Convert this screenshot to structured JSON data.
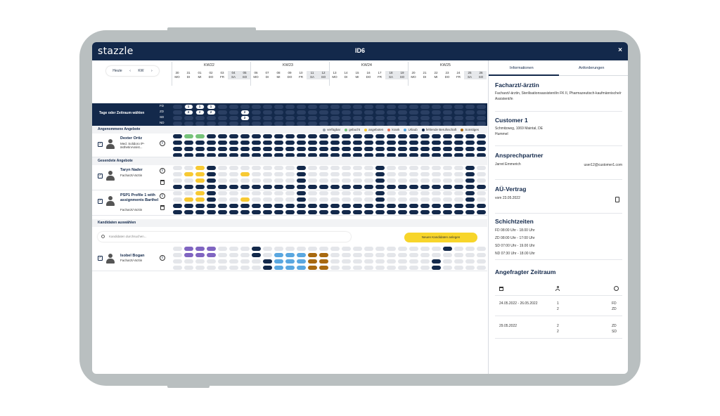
{
  "app": {
    "logo": "stazzle",
    "title": "ID6",
    "close_label": "×"
  },
  "nav": {
    "today_label": "Heute",
    "prev_label": "‹",
    "unit_label": "KW",
    "next_label": "›"
  },
  "weeks": [
    "KW22",
    "KW23",
    "KW24",
    "KW25"
  ],
  "days": [
    {
      "n": "30",
      "d": "MO",
      "we": false
    },
    {
      "n": "31",
      "d": "DI",
      "we": false
    },
    {
      "n": "01",
      "d": "MI",
      "we": false
    },
    {
      "n": "02",
      "d": "DO",
      "we": false
    },
    {
      "n": "03",
      "d": "FR",
      "we": false
    },
    {
      "n": "04",
      "d": "SA",
      "we": true
    },
    {
      "n": "05",
      "d": "SO",
      "we": true
    },
    {
      "n": "06",
      "d": "MO",
      "we": false
    },
    {
      "n": "07",
      "d": "DI",
      "we": false
    },
    {
      "n": "08",
      "d": "MI",
      "we": false
    },
    {
      "n": "09",
      "d": "DO",
      "we": false
    },
    {
      "n": "10",
      "d": "FR",
      "we": false
    },
    {
      "n": "11",
      "d": "SA",
      "we": true
    },
    {
      "n": "12",
      "d": "SO",
      "we": true
    },
    {
      "n": "13",
      "d": "MO",
      "we": false
    },
    {
      "n": "14",
      "d": "DI",
      "we": false
    },
    {
      "n": "15",
      "d": "MI",
      "we": false
    },
    {
      "n": "16",
      "d": "DO",
      "we": false
    },
    {
      "n": "17",
      "d": "FR",
      "we": false
    },
    {
      "n": "18",
      "d": "SA",
      "we": true
    },
    {
      "n": "19",
      "d": "SO",
      "we": true
    },
    {
      "n": "20",
      "d": "MO",
      "we": false
    },
    {
      "n": "21",
      "d": "DI",
      "we": false
    },
    {
      "n": "22",
      "d": "MI",
      "we": false
    },
    {
      "n": "23",
      "d": "DO",
      "we": false
    },
    {
      "n": "24",
      "d": "FR",
      "we": false
    },
    {
      "n": "25",
      "d": "SA",
      "we": true
    },
    {
      "n": "26",
      "d": "SO",
      "we": true
    }
  ],
  "band": {
    "label": "Tage oder Zeitraum wählen",
    "shifts": [
      "FD",
      "ZD",
      "SD",
      "ND"
    ],
    "counts": [
      {
        "day": 1,
        "shift": 0,
        "value": "1"
      },
      {
        "day": 2,
        "shift": 0,
        "value": "1"
      },
      {
        "day": 3,
        "shift": 0,
        "value": "1"
      },
      {
        "day": 1,
        "shift": 1,
        "value": "2"
      },
      {
        "day": 2,
        "shift": 1,
        "value": "2"
      },
      {
        "day": 3,
        "shift": 1,
        "value": "2"
      },
      {
        "day": 6,
        "shift": 1,
        "value": "2"
      },
      {
        "day": 6,
        "shift": 2,
        "value": "2"
      }
    ]
  },
  "sections": {
    "accepted": "Angenommene Angebote",
    "sent": "Gesendete Angebote",
    "select": "Kandidaten auswählen"
  },
  "legend": [
    {
      "label": "verfügbar",
      "color": "#9aa3ad"
    },
    {
      "label": "gebucht",
      "color": "#76c279"
    },
    {
      "label": "angeboten",
      "color": "#f7c933"
    },
    {
      "label": "krank",
      "color": "#e8735a"
    },
    {
      "label": "Urlaub",
      "color": "#5aa7e0"
    },
    {
      "label": "fehlende Berufsschaft",
      "color": "#13294b"
    },
    {
      "label": "Sonstiges",
      "color": "#a8690f"
    }
  ],
  "candidates": [
    {
      "name": "Dexter Ortiz",
      "role_lines": [
        "Med. Solidoro /P-",
        "ästhetinAssist..."
      ],
      "trash": false,
      "grid": [
        "dggdddddddddddddddddddddddddd",
        "ddddddddddddddddddddddddddd",
        "ddddddddddddddddddddddddddd",
        "ddddddddddddddddddddddddddd"
      ]
    },
    {
      "name": "Taryn Nader",
      "role_lines": [
        "Facharzt/-ärztin"
      ],
      "trash": true,
      "grid": [
        "ggydgggggggdggggggdgggggggdggg",
        "gyydggyggggdggggggdgggggggdggg",
        "ggydgggggggdggggggdgggggggdggg",
        "ddddddddddddddddddddddddddddd"
      ]
    },
    {
      "name": "PSP1 Profile 1 with assignments Barthel",
      "role_lines": [
        "Facharzt/-ärztin"
      ],
      "trash": true,
      "grid": [
        "ggydgggggggdggggggdgggggggdggg",
        "gyydggyggggdggggggdgggggggdggg",
        "ddddddddddddddddddddddddddddd",
        "ddddddddddddddddddddddddddddd"
      ]
    }
  ],
  "search": {
    "placeholder": "Kandidaten durchsuchen..."
  },
  "new_candidate_button": "Neuen Kandidaten anlegen",
  "select_candidate": {
    "name": "Isobel Bogan",
    "role": "Facharzt/-ärztin",
    "grid": [
      "gpppgggdggggggggggggggggdgggggd",
      "gpppgggdgbbbrrgggggggggggggggd",
      "ggggggggdbbbrrgggggggggdggggggd",
      "ggggggggdbbbrrgggggggggdggggggd"
    ]
  },
  "right": {
    "tabs": [
      "Informationen",
      "Anforderungen"
    ],
    "job_title": "Facharzt/-ärztin",
    "job_desc": "Facharzt/-ärztin, Sterilisationsassistent/in FK II, Pharmazeutisch-kaufmännische/r Assistent/in",
    "customer_title": "Customer 1",
    "customer_address": "Schmitzweg, 1069 Maintal, DE",
    "customer_city": "Hummel",
    "contact_title": "Ansprechpartner",
    "contact_name": "Jarret Emmerich",
    "contact_email": "user12@customer1.com",
    "contract_title": "AÜ-Vertrag",
    "contract_date": "vom 23.05.2022",
    "shifts_title": "Schichtzeiten",
    "shifts": [
      "FD 08:00 Uhr - 18.00 Uhr",
      "ZD 08:00 Uhr - 17:00 Uhr",
      "SD 07:00 Uhr - 19.00 Uhr",
      "ND 07:30 Uhr - 18.00 Uhr"
    ],
    "period_title": "Angefragter Zeitraum",
    "periods": [
      {
        "range": "24.05.2022 - 26.05.2022",
        "counts": [
          "1",
          "2"
        ],
        "shifts": [
          "FD",
          "ZD"
        ]
      },
      {
        "range": "29.05.2022",
        "counts": [
          "2",
          "2"
        ],
        "shifts": [
          "ZD",
          "SD"
        ]
      }
    ]
  }
}
